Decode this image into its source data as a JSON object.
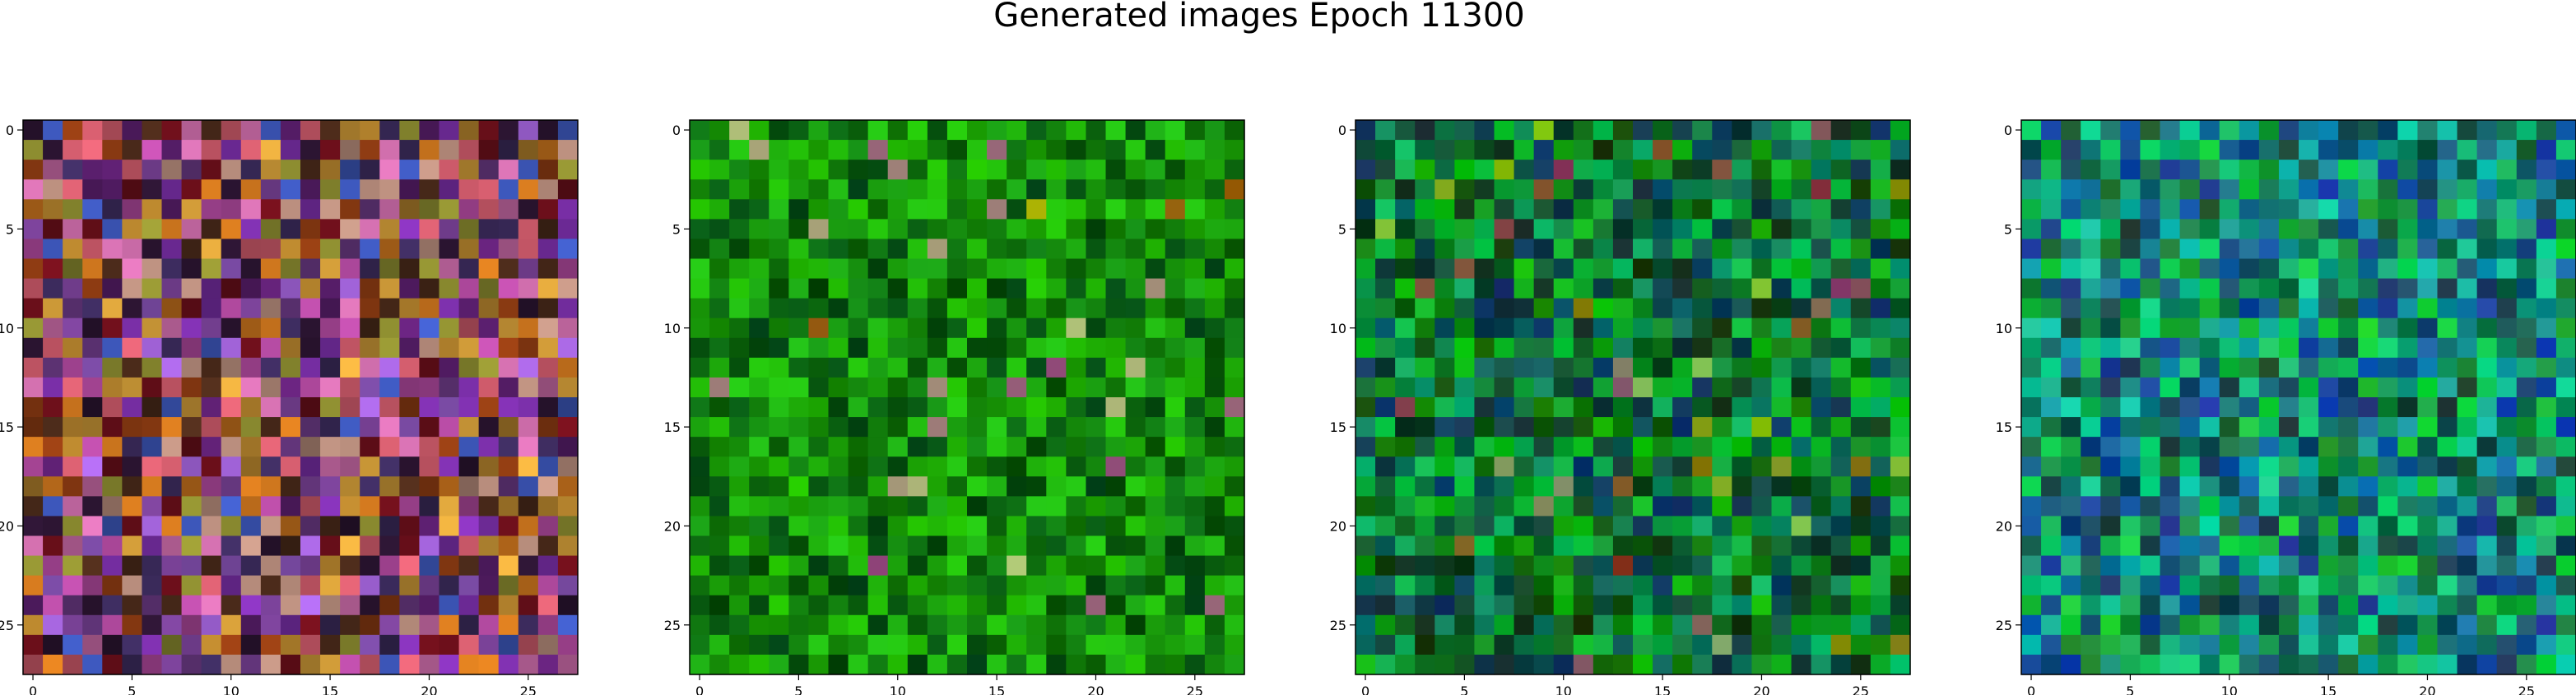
{
  "figure": {
    "title": "Generated images Epoch 11300"
  },
  "chart_data": [
    {
      "type": "heatmap",
      "palette": "multicolor",
      "grid_size": [
        28,
        28
      ],
      "x_ticks": [
        0,
        5,
        10,
        15,
        20,
        25
      ],
      "y_ticks": [
        0,
        5,
        10,
        15,
        20,
        25
      ],
      "xlim": [
        -0.5,
        27.5
      ],
      "ylim": [
        27.5,
        -0.5
      ]
    },
    {
      "type": "heatmap",
      "palette": "green",
      "grid_size": [
        28,
        28
      ],
      "x_ticks": [
        0,
        5,
        10,
        15,
        20,
        25
      ],
      "y_ticks": [
        0,
        5,
        10,
        15,
        20,
        25
      ],
      "xlim": [
        -0.5,
        27.5
      ],
      "ylim": [
        27.5,
        -0.5
      ]
    },
    {
      "type": "heatmap",
      "palette": "green-teal",
      "grid_size": [
        28,
        28
      ],
      "x_ticks": [
        0,
        5,
        10,
        15,
        20,
        25
      ],
      "y_ticks": [
        0,
        5,
        10,
        15,
        20,
        25
      ],
      "xlim": [
        -0.5,
        27.5
      ],
      "ylim": [
        27.5,
        -0.5
      ]
    },
    {
      "type": "heatmap",
      "palette": "teal",
      "grid_size": [
        28,
        28
      ],
      "x_ticks": [
        0,
        5,
        10,
        15,
        20,
        25
      ],
      "y_ticks": [
        0,
        5,
        10,
        15,
        20,
        25
      ],
      "xlim": [
        -0.5,
        27.5
      ],
      "ylim": [
        27.5,
        -0.5
      ]
    }
  ]
}
